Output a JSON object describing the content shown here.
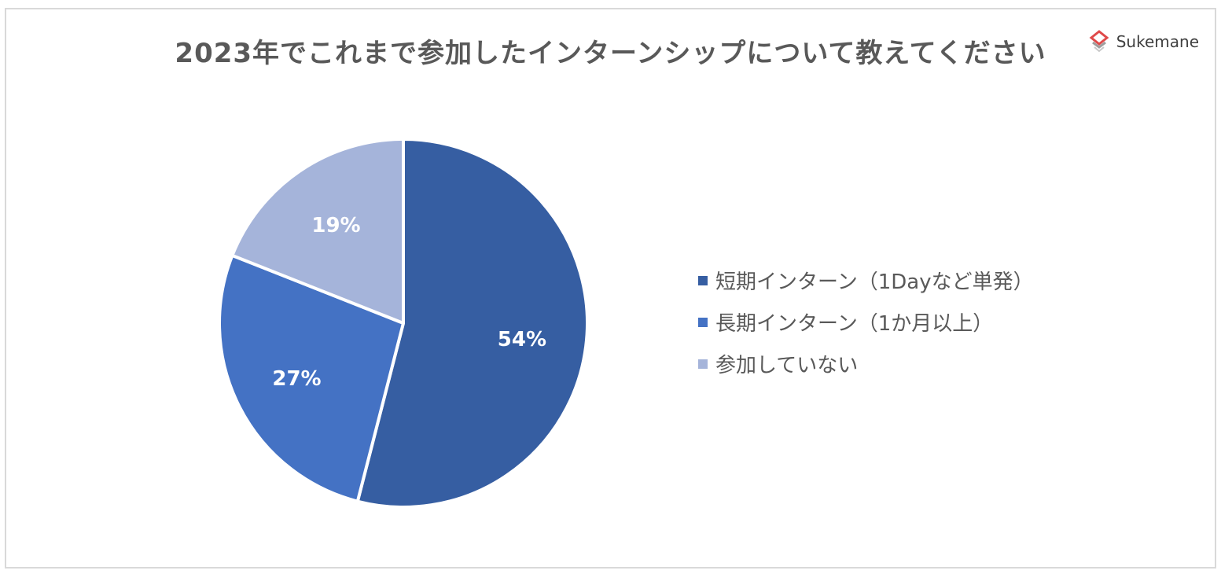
{
  "brand": {
    "name": "Sukemane",
    "logo_color": "#e04a4a"
  },
  "chart_data": {
    "type": "pie",
    "title": "2023年でこれまで参加したインターンシップについて教えてください",
    "legend_position": "right",
    "slices": [
      {
        "label": "短期インターン（1Dayなど単発）",
        "value": 54,
        "display": "54%",
        "color": "#365ea2"
      },
      {
        "label": "長期インターン（1か月以上）",
        "value": 27,
        "display": "27%",
        "color": "#4472c4"
      },
      {
        "label": "参加していない",
        "value": 19,
        "display": "19%",
        "color": "#a5b4da"
      }
    ]
  }
}
